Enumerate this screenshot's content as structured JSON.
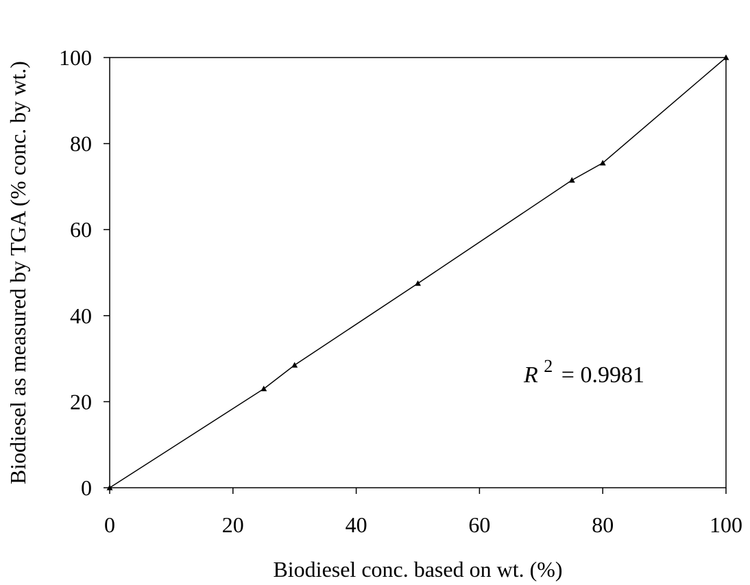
{
  "chart_data": {
    "type": "line",
    "title": "",
    "xlabel": "Biodiesel conc. based on wt. (%)",
    "ylabel": "Biodiesel as measured by TGA (% conc. by wt.)",
    "xlim": [
      0,
      100
    ],
    "ylim": [
      0,
      100
    ],
    "x_ticks": [
      0,
      20,
      40,
      60,
      80,
      100
    ],
    "y_ticks": [
      0,
      20,
      40,
      60,
      80,
      100
    ],
    "grid": false,
    "legend": "none",
    "series": [
      {
        "marker": "triangle",
        "color": "#000000",
        "x": [
          0,
          25,
          30,
          50,
          75,
          80,
          100
        ],
        "y": [
          0,
          23,
          28.5,
          47.5,
          71.5,
          75.5,
          100
        ]
      }
    ],
    "annotation": {
      "symbol": "R",
      "superscript": "2",
      "text": "= 0.9981"
    }
  }
}
